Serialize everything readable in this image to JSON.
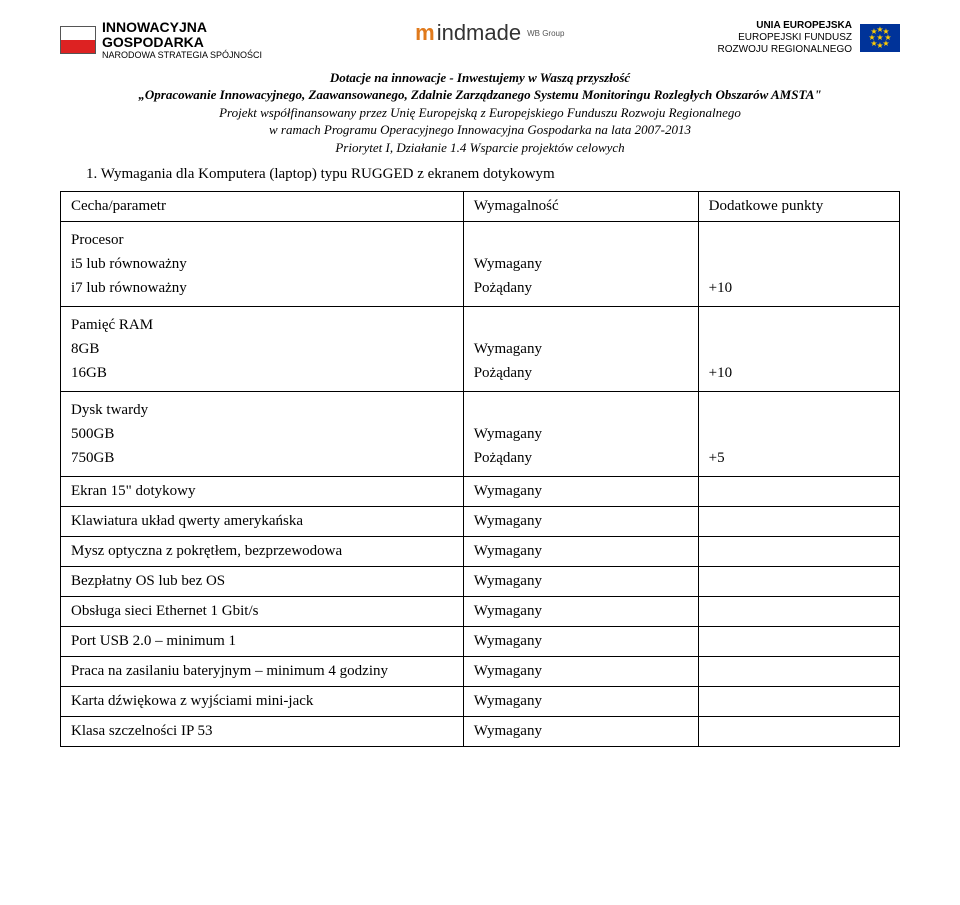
{
  "logos": {
    "innowacyjna": {
      "line1": "INNOWACYJNA",
      "line2": "GOSPODARKA",
      "line3": "NARODOWA STRATEGIA SPÓJNOŚCI"
    },
    "mindmade": {
      "brand_prefix": "m",
      "brand_rest": "indmade",
      "sub": "WB Group"
    },
    "eu": {
      "line1": "UNIA EUROPEJSKA",
      "line2": "EUROPEJSKI FUNDUSZ",
      "line3": "ROZWOJU REGIONALNEGO"
    }
  },
  "header": {
    "l1": "Dotacje na innowacje - Inwestujemy w Waszą przyszłość",
    "l2": "„Opracowanie Innowacyjnego, Zaawansowanego, Zdalnie Zarządzanego Systemu Monitoringu Rozległych Obszarów AMSTA\"",
    "l3": "Projekt współfinansowany przez Unię Europejską z Europejskiego Funduszu Rozwoju Regionalnego",
    "l4": "w ramach Programu Operacyjnego Innowacyjna Gospodarka na lata 2007-2013",
    "l5": "Priorytet I, Działanie 1.4 Wsparcie projektów celowych"
  },
  "section_title": "1. Wymagania dla Komputera (laptop) typu RUGGED z ekranem dotykowym",
  "table": {
    "head": {
      "c1": "Cecha/parametr",
      "c2": "Wymagalność",
      "c3": "Dodatkowe punkty"
    },
    "rows": [
      {
        "c1": [
          "Procesor",
          "i5 lub równoważny",
          "i7 lub równoważny"
        ],
        "c2": [
          "",
          "Wymagany",
          "Pożądany"
        ],
        "c3": [
          "",
          "",
          "+10"
        ]
      },
      {
        "c1": [
          "Pamięć RAM",
          "8GB",
          "16GB"
        ],
        "c2": [
          "",
          "Wymagany",
          "Pożądany"
        ],
        "c3": [
          "",
          "",
          "+10"
        ]
      },
      {
        "c1": [
          "Dysk twardy",
          "500GB",
          "750GB"
        ],
        "c2": [
          "",
          "Wymagany",
          "Pożądany"
        ],
        "c3": [
          "",
          "",
          "+5"
        ]
      },
      {
        "c1": [
          "Ekran 15\" dotykowy"
        ],
        "c2": [
          "Wymagany"
        ],
        "c3": [
          ""
        ]
      },
      {
        "c1": [
          "Klawiatura układ qwerty amerykańska"
        ],
        "c2": [
          "Wymagany"
        ],
        "c3": [
          ""
        ]
      },
      {
        "c1": [
          "Mysz optyczna z pokrętłem, bezprzewodowa"
        ],
        "c2": [
          "Wymagany"
        ],
        "c3": [
          ""
        ]
      },
      {
        "c1": [
          "Bezpłatny OS lub bez OS"
        ],
        "c2": [
          "Wymagany"
        ],
        "c3": [
          ""
        ]
      },
      {
        "c1": [
          "Obsługa sieci Ethernet 1 Gbit/s"
        ],
        "c2": [
          "Wymagany"
        ],
        "c3": [
          ""
        ]
      },
      {
        "c1": [
          "Port USB 2.0 – minimum 1"
        ],
        "c2": [
          "Wymagany"
        ],
        "c3": [
          ""
        ]
      },
      {
        "c1": [
          "Praca na zasilaniu bateryjnym – minimum 4 godziny"
        ],
        "c2": [
          "Wymagany"
        ],
        "c3": [
          ""
        ]
      },
      {
        "c1": [
          "Karta dźwiękowa z wyjściami mini-jack"
        ],
        "c2": [
          "Wymagany"
        ],
        "c3": [
          ""
        ]
      },
      {
        "c1": [
          "Klasa szczelności IP 53"
        ],
        "c2": [
          "Wymagany"
        ],
        "c3": [
          ""
        ]
      }
    ],
    "col_widths": [
      "48%",
      "28%",
      "24%"
    ]
  },
  "colors": {
    "text": "#000000",
    "border": "#000000",
    "bg": "#ffffff",
    "eu_blue": "#003399",
    "eu_gold": "#ffcc00",
    "pl_red": "#d22",
    "mindmade_orange": "#e07a1c"
  }
}
